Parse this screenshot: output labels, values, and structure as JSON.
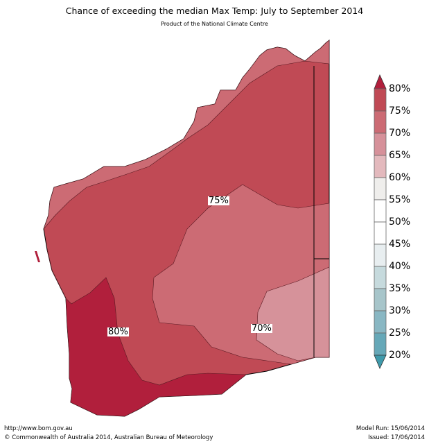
{
  "title": "Chance of exceeding the median Max Temp: July to September 2014",
  "subtitle": "Product of the National Climate Centre",
  "footer": {
    "url": "http://www.bom.gov.au",
    "copyright": "©  Commonwealth of Australia 2014, Australian Bureau of Meteorology",
    "model_run": "Model Run: 15/06/2014",
    "issued": "Issued: 17/06/2014"
  },
  "map_labels": {
    "p75": "75%",
    "p70": "70%",
    "p80": "80%"
  },
  "colorbar": {
    "ticks": [
      "80%",
      "75%",
      "70%",
      "65%",
      "60%",
      "55%",
      "50%",
      "45%",
      "40%",
      "35%",
      "30%",
      "25%",
      "20%"
    ],
    "colors_top_to_bottom": [
      "#c04a55",
      "#cc6b74",
      "#d6919a",
      "#e3b9bd",
      "#efeeec",
      "#ffffff",
      "#ffffff",
      "#e8eef0",
      "#c6dadd",
      "#a7c5ca",
      "#89b7c3",
      "#66a8b8"
    ],
    "over_color": "#b11f3c",
    "under_color": "#3f9aab"
  },
  "region_colors": {
    "p80": "#b11f3c",
    "p75": "#c04a55",
    "p70": "#cc6b74",
    "p65": "#d6929a"
  }
}
